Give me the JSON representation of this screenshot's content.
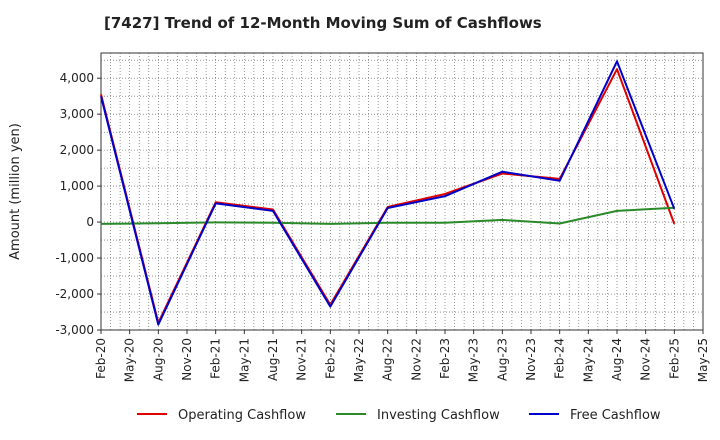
{
  "chart_data": {
    "type": "line",
    "title": "[7427]  Trend of 12-Month Moving Sum of Cashflows",
    "xlabel": "",
    "ylabel": "Amount (million yen)",
    "ylim": [
      -3000,
      4700
    ],
    "yticks": [
      4000,
      3000,
      2000,
      1000,
      0,
      -1000,
      -2000,
      -3000
    ],
    "ytick_labels": [
      "4,000",
      "3,000",
      "2,000",
      "1,000",
      "0",
      "-1,000",
      "-2,000",
      "-3,000"
    ],
    "categories": [
      "Feb-20",
      "May-20",
      "Aug-20",
      "Nov-20",
      "Feb-21",
      "May-21",
      "Aug-21",
      "Nov-21",
      "Feb-22",
      "May-22",
      "Aug-22",
      "Nov-22",
      "Feb-23",
      "May-23",
      "Aug-23",
      "Nov-23",
      "Feb-24",
      "May-24",
      "Aug-24",
      "Nov-24",
      "Feb-25",
      "May-25"
    ],
    "grid": true,
    "legend_position": "bottom",
    "series": [
      {
        "name": "Operating Cashflow",
        "color": "#e00000",
        "values": [
          3550,
          null,
          -2800,
          null,
          550,
          null,
          350,
          null,
          -2300,
          null,
          420,
          null,
          780,
          null,
          1350,
          null,
          1200,
          null,
          4250,
          null,
          -50,
          null
        ]
      },
      {
        "name": "Investing Cashflow",
        "color": "#2a8a2a",
        "values": [
          -50,
          null,
          -30,
          null,
          -10,
          null,
          -20,
          null,
          -50,
          null,
          -20,
          null,
          -20,
          null,
          60,
          null,
          -40,
          null,
          310,
          null,
          400,
          null
        ]
      },
      {
        "name": "Free Cashflow",
        "color": "#0000c8",
        "values": [
          3500,
          null,
          -2850,
          null,
          520,
          null,
          310,
          null,
          -2350,
          null,
          390,
          null,
          720,
          null,
          1400,
          null,
          1150,
          null,
          4470,
          null,
          370,
          null
        ]
      }
    ]
  }
}
